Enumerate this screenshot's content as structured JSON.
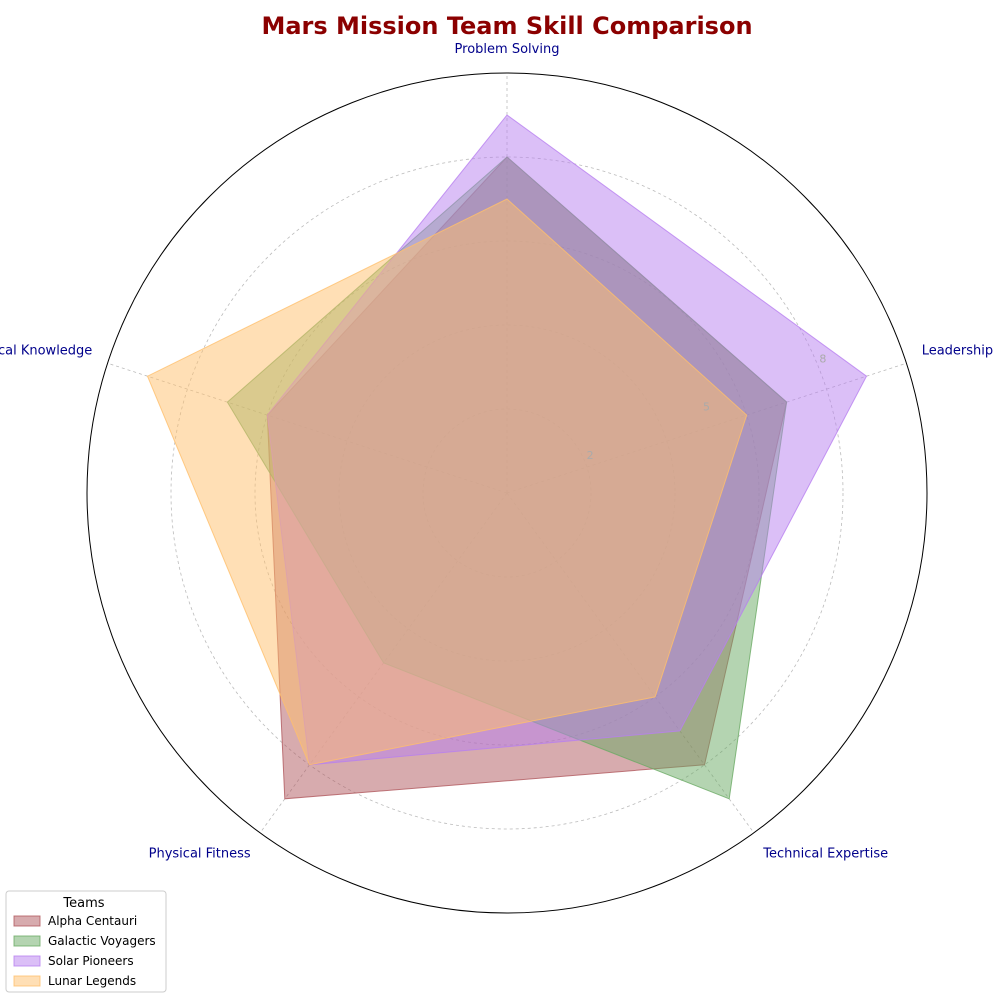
{
  "chart_data": {
    "type": "radar",
    "title": "Mars Mission Team Skill Comparison",
    "categories": [
      "Leadership",
      "Technical Expertise",
      "Physical Fitness",
      "Medical Knowledge",
      "Problem Solving"
    ],
    "rlim": [
      0,
      10
    ],
    "r_ticks": [
      2,
      5,
      8
    ],
    "grid": true,
    "legend": {
      "title": "Teams",
      "placement": "bottom-left"
    },
    "series": [
      {
        "name": "Alpha Centauri",
        "values": [
          7,
          8,
          9,
          6,
          8
        ],
        "color": "#b0585d"
      },
      {
        "name": "Galactic Voyagers",
        "values": [
          7,
          9,
          5,
          7,
          8
        ],
        "color": "#6aaa64"
      },
      {
        "name": "Solar Pioneers",
        "values": [
          9,
          7,
          8,
          6,
          9
        ],
        "color": "#b87ff0"
      },
      {
        "name": "Lunar Legends",
        "values": [
          6,
          6,
          8,
          9,
          7
        ],
        "color": "#ffbf6b"
      }
    ],
    "colors": {
      "title": "#8b0000",
      "axis_label": "#00008b",
      "tick_label": "#aaaaaa",
      "grid": "#bbbbbb"
    }
  }
}
